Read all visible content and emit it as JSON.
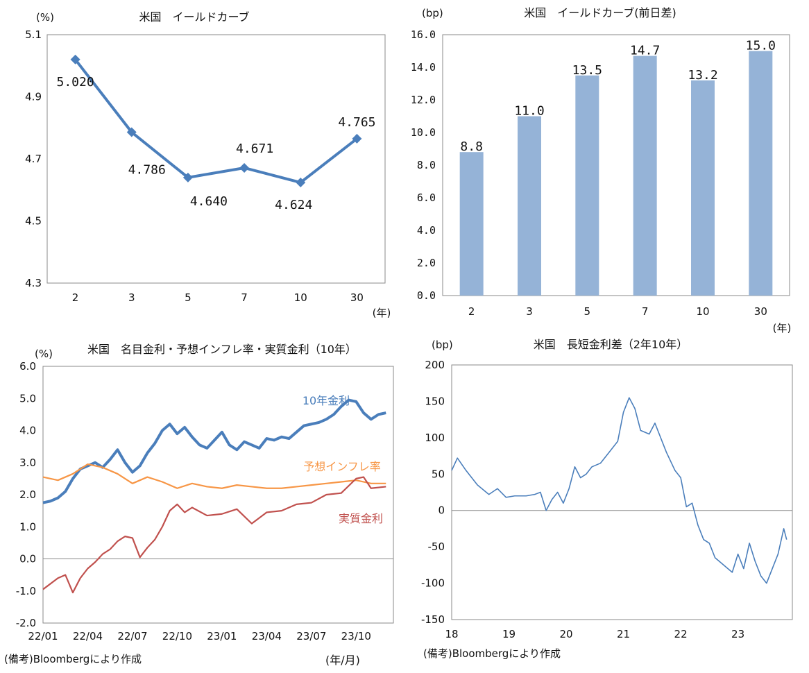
{
  "colors": {
    "line_blue": "#4a7ebb",
    "bar_blue": "#95b3d7",
    "orange": "#f79646",
    "red": "#c0504d",
    "axis": "#888888"
  },
  "chart_data": [
    {
      "id": "c1",
      "type": "line",
      "title": "米国　イールドカーブ",
      "unit": "(%)",
      "xunit": "(年)",
      "categories": [
        "2",
        "3",
        "5",
        "7",
        "10",
        "30"
      ],
      "values": [
        5.02,
        4.786,
        4.64,
        4.671,
        4.624,
        4.765
      ],
      "data_labels": [
        "5.020",
        "4.786",
        "4.640",
        "4.671",
        "4.624",
        "4.765"
      ],
      "ylim": [
        4.3,
        5.1
      ],
      "yticks": [
        "5.1",
        "4.9",
        "4.7",
        "4.5",
        "4.3"
      ],
      "ytick_values": [
        5.1,
        4.9,
        4.7,
        4.5,
        4.3
      ]
    },
    {
      "id": "c2",
      "type": "bar",
      "title": "米国　イールドカーブ(前日差)",
      "unit": "(bp)",
      "xunit": "(年)",
      "categories": [
        "2",
        "3",
        "5",
        "7",
        "10",
        "30"
      ],
      "values": [
        8.8,
        11.0,
        13.5,
        14.7,
        13.2,
        15.0
      ],
      "data_labels": [
        "8.8",
        "11.0",
        "13.5",
        "14.7",
        "13.2",
        "15.0"
      ],
      "ylim": [
        0,
        16
      ],
      "yticks": [
        "16.0",
        "14.0",
        "12.0",
        "10.0",
        "8.0",
        "6.0",
        "4.0",
        "2.0",
        "0.0"
      ],
      "ytick_values": [
        16,
        14,
        12,
        10,
        8,
        6,
        4,
        2,
        0
      ]
    },
    {
      "id": "c3",
      "type": "line",
      "title": "米国　名目金利・予想インフレ率・実質金利（10年）",
      "unit": "(%)",
      "xunit": "(年/月)",
      "note": "(備考)Bloombergにより作成",
      "x_ticks": [
        "22/01",
        "22/04",
        "22/07",
        "22/10",
        "23/01",
        "23/04",
        "23/07",
        "23/10"
      ],
      "ylim": [
        -2,
        6
      ],
      "yticks": [
        "6.0",
        "5.0",
        "4.0",
        "3.0",
        "2.0",
        "1.0",
        "0.0",
        "-1.0",
        "-2.0"
      ],
      "ytick_values": [
        6,
        5,
        4,
        3,
        2,
        1,
        0,
        -1,
        -2
      ],
      "series": [
        {
          "name": "10年金利",
          "label": "10年金利",
          "x": [
            0,
            0.5,
            1,
            1.5,
            2,
            2.5,
            3,
            3.5,
            4,
            4.5,
            5,
            5.5,
            6,
            6.5,
            7,
            7.5,
            8,
            8.5,
            9,
            9.5,
            10,
            10.5,
            11,
            11.5,
            12,
            12.5,
            13,
            13.5,
            14,
            14.5,
            15,
            15.5,
            16,
            16.5,
            17,
            17.5,
            18,
            18.5,
            19,
            19.5,
            20,
            20.5,
            21,
            21.5,
            22,
            22.5,
            23
          ],
          "values": [
            1.75,
            1.8,
            1.9,
            2.1,
            2.5,
            2.8,
            2.9,
            3.0,
            2.85,
            3.1,
            3.4,
            3.0,
            2.7,
            2.9,
            3.3,
            3.6,
            4.0,
            4.2,
            3.9,
            4.1,
            3.8,
            3.55,
            3.45,
            3.7,
            3.95,
            3.55,
            3.4,
            3.65,
            3.55,
            3.45,
            3.75,
            3.7,
            3.8,
            3.75,
            3.95,
            4.15,
            4.2,
            4.25,
            4.35,
            4.5,
            4.75,
            4.95,
            4.9,
            4.55,
            4.35,
            4.5,
            4.55
          ]
        },
        {
          "name": "予想インフレ率",
          "label": "予想インフレ率",
          "x": [
            0,
            1,
            2,
            3,
            4,
            5,
            6,
            7,
            8,
            9,
            10,
            11,
            12,
            13,
            14,
            15,
            16,
            17,
            18,
            19,
            20,
            21,
            22,
            23
          ],
          "values": [
            2.55,
            2.45,
            2.65,
            2.95,
            2.85,
            2.65,
            2.35,
            2.55,
            2.4,
            2.2,
            2.35,
            2.25,
            2.2,
            2.3,
            2.25,
            2.2,
            2.2,
            2.25,
            2.3,
            2.35,
            2.4,
            2.45,
            2.35,
            2.35
          ]
        },
        {
          "name": "実質金利",
          "label": "実質金利",
          "x": [
            0,
            1,
            1.5,
            2,
            2.5,
            3,
            3.5,
            4,
            4.5,
            5,
            5.5,
            6,
            6.5,
            7,
            7.5,
            8,
            8.5,
            9,
            9.5,
            10,
            11,
            12,
            13,
            14,
            15,
            16,
            17,
            18,
            19,
            20,
            21,
            21.5,
            22,
            23
          ],
          "values": [
            -0.95,
            -0.6,
            -0.5,
            -1.05,
            -0.6,
            -0.3,
            -0.1,
            0.15,
            0.3,
            0.55,
            0.7,
            0.65,
            0.05,
            0.35,
            0.6,
            1.0,
            1.5,
            1.7,
            1.45,
            1.6,
            1.35,
            1.4,
            1.55,
            1.1,
            1.45,
            1.5,
            1.7,
            1.75,
            2.0,
            2.05,
            2.5,
            2.55,
            2.2,
            2.25
          ]
        }
      ]
    },
    {
      "id": "c4",
      "type": "line",
      "title": "米国　長短金利差（2年10年）",
      "unit": "(bp)",
      "note": "(備考)Bloombergにより作成",
      "x_ticks": [
        "18",
        "19",
        "20",
        "21",
        "22",
        "23"
      ],
      "ylim": [
        -150,
        200
      ],
      "yticks": [
        "200",
        "150",
        "100",
        "50",
        "0",
        "-50",
        "-100",
        "-150"
      ],
      "ytick_values": [
        200,
        150,
        100,
        50,
        0,
        -50,
        -100,
        -150
      ],
      "series": [
        {
          "name": "長短金利差",
          "x": [
            2018.0,
            2018.1,
            2018.25,
            2018.45,
            2018.65,
            2018.8,
            2018.95,
            2019.1,
            2019.3,
            2019.45,
            2019.55,
            2019.65,
            2019.75,
            2019.85,
            2019.95,
            2020.05,
            2020.15,
            2020.25,
            2020.35,
            2020.45,
            2020.6,
            2020.75,
            2020.9,
            2021.0,
            2021.1,
            2021.2,
            2021.3,
            2021.45,
            2021.55,
            2021.65,
            2021.75,
            2021.9,
            2022.0,
            2022.1,
            2022.2,
            2022.3,
            2022.4,
            2022.5,
            2022.6,
            2022.75,
            2022.9,
            2023.0,
            2023.1,
            2023.2,
            2023.3,
            2023.4,
            2023.5,
            2023.6,
            2023.7,
            2023.8,
            2023.85
          ],
          "values": [
            55,
            72,
            55,
            35,
            22,
            30,
            18,
            20,
            20,
            22,
            25,
            0,
            15,
            25,
            10,
            30,
            60,
            45,
            50,
            60,
            65,
            80,
            95,
            135,
            155,
            140,
            110,
            105,
            120,
            100,
            80,
            55,
            45,
            5,
            10,
            -20,
            -40,
            -45,
            -65,
            -75,
            -85,
            -60,
            -80,
            -45,
            -70,
            -90,
            -100,
            -80,
            -60,
            -25,
            -40
          ]
        }
      ]
    }
  ]
}
